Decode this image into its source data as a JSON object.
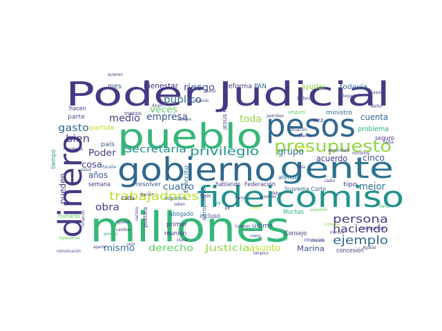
{
  "palette": [
    "#443a83",
    "#31688e",
    "#21918c",
    "#35b779",
    "#90d743",
    "#fde725",
    "#472d7b",
    "#3b528b",
    "#2c728e",
    "#28ae80",
    "#5ec962",
    "#bddf26"
  ],
  "words": [
    "Poder Judicial",
    "pueblo",
    "pesos",
    "gobierno",
    "gente",
    "millones",
    "fideicomiso",
    "dinero",
    "presupuesto",
    "trabajadores",
    "privilegio",
    "persona",
    "ejemplo",
    "haciendo",
    "Secretaría",
    "empresa",
    "medio",
    "bien",
    "gasto",
    "público",
    "riesgo",
    "bienestar",
    "reforma",
    "PAN",
    "ayudar",
    "todavía",
    "mes",
    "toda",
    "grupo",
    "cinco",
    "cuenta",
    "problema",
    "acuerdo",
    "mejor",
    "cuatro",
    "Poder",
    "cosa",
    "años",
    "obra",
    "pueden",
    "mismo",
    "derecho",
    "Justicia",
    "asunto",
    "Marina",
    "concesión",
    "Consejo",
    "Suprema Corte",
    "Federación",
    "atender",
    "hablando",
    "incluso",
    "reunión",
    "primer",
    "política",
    "Ejército",
    "aeropuerto",
    "último",
    "veces",
    "hacen",
    "parte",
    "partida",
    "país",
    "semana",
    "resolver",
    "cada",
    "tipo",
    "vez",
    "ministro",
    "seguro",
    "menos",
    "abogado",
    "ir",
    "Muchas",
    "momento",
    "JESÚS RAMÍREZ",
    "migrantes",
    "amparo",
    "Defensa",
    "quieren",
    "tiempo",
    "comunicación",
    "aparte",
    "salud",
    "Nación",
    "mentira",
    "daño",
    "quiero",
    "sistema",
    "seguridad",
    "vacuna",
    "llegar",
    "casos",
    "delito",
    "supuesto",
    "privada",
    "debe",
    "saben",
    "caso",
    "ley",
    "fiscalía",
    "falta",
    "jueces",
    "cambio",
    "tampoco",
    "viene",
    "Congreso",
    "legisladores",
    "Aguilar",
    "ministros",
    "Presidencia",
    "general",
    "libros",
    "radio",
    "pasa",
    "buscar",
    "diciendo",
    "situación",
    "información",
    "petróleo",
    "siempre",
    "dicen",
    "fondo",
    "completamente",
    "completamente",
    "público",
    "Nación",
    "poder",
    "corrupción",
    "machismo",
    "interés",
    "poner",
    "población",
    "dije"
  ]
}
